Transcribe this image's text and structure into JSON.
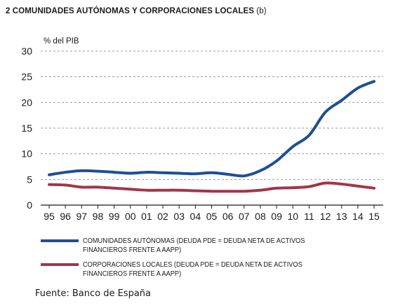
{
  "figure": {
    "title": "2  COMUNIDADES AUTÓNOMAS Y CORPORACIONES LOCALES",
    "title_suffix": "(b)",
    "source": "Fuente: Banco de España"
  },
  "chart_data": {
    "type": "line",
    "title": "2  COMUNIDADES AUTÓNOMAS Y CORPORACIONES LOCALES (b)",
    "ylabel": "% del PIB",
    "xlabel": "",
    "categories": [
      "95",
      "96",
      "97",
      "98",
      "99",
      "00",
      "01",
      "02",
      "03",
      "04",
      "05",
      "06",
      "07",
      "08",
      "09",
      "10",
      "11",
      "12",
      "13",
      "14",
      "15"
    ],
    "ylim": [
      0,
      30
    ],
    "yticks": [
      0,
      5,
      10,
      15,
      20,
      25,
      30
    ],
    "grid": "horizontal dashed",
    "legend_position": "bottom",
    "series": [
      {
        "name": "COMUNIDADES AUTÓNOMAS (DEUDA PDE = DEUDA NETA DE ACTIVOS FINANCIEROS FRENTE A AAPP)",
        "color": "#1f4e96",
        "values": [
          5.9,
          6.4,
          6.7,
          6.6,
          6.4,
          6.2,
          6.4,
          6.3,
          6.2,
          6.1,
          6.3,
          6.0,
          5.7,
          6.7,
          8.6,
          11.4,
          13.6,
          18.1,
          20.4,
          22.8,
          24.1
        ]
      },
      {
        "name": "CORPORACIONES LOCALES (DEUDA PDE = DEUDA NETA DE ACTIVOS FINANCIEROS FRENTE A AAPP)",
        "color": "#a3344a",
        "values": [
          4.0,
          3.9,
          3.5,
          3.5,
          3.3,
          3.1,
          2.9,
          2.9,
          2.9,
          2.8,
          2.7,
          2.7,
          2.7,
          2.9,
          3.3,
          3.4,
          3.6,
          4.3,
          4.1,
          3.7,
          3.3
        ]
      }
    ]
  }
}
